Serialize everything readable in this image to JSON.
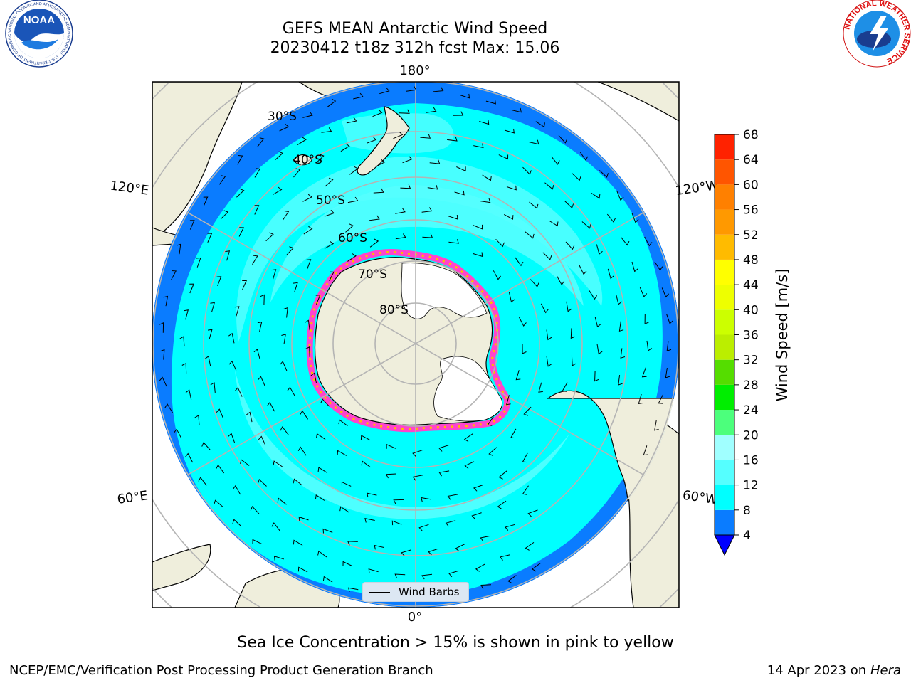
{
  "header": {
    "title_line1": "GEFS MEAN Antarctic Wind Speed",
    "title_line2": "20230412 t18z 312h fcst   Max: 15.06"
  },
  "map": {
    "projection": "south-polar-stereographic",
    "longitude_labels": {
      "top": "180°",
      "bottom": "0°",
      "upper_left": "120°E",
      "upper_right": "120°W",
      "lower_left": "60°E",
      "lower_right": "60°W"
    },
    "latitude_labels": [
      "30°S",
      "40°S",
      "50°S",
      "60°S",
      "70°S",
      "80°S"
    ],
    "colors": {
      "land": "#efeedc",
      "ocean_4_8": "#0a7cff",
      "ocean_8_12": "#00ffff",
      "ocean_12_16": "#55ffff",
      "ice": "#ff44cc",
      "ice_alt": "#ffbb00",
      "antarctic_ice_shelf": "#ffffff",
      "grid": "#b4b4b4"
    }
  },
  "legend": {
    "wind_barbs_label": "Wind Barbs"
  },
  "colorbar": {
    "label": "Wind Speed [m/s]",
    "ticks": [
      68,
      64,
      60,
      56,
      52,
      48,
      44,
      40,
      36,
      32,
      28,
      24,
      20,
      16,
      12,
      8,
      4
    ],
    "bands": [
      {
        "from": 4,
        "to": 8,
        "color": "#0a7cff"
      },
      {
        "from": 8,
        "to": 12,
        "color": "#00ffff"
      },
      {
        "from": 12,
        "to": 16,
        "color": "#55ffff"
      },
      {
        "from": 16,
        "to": 20,
        "color": "#a0ffff"
      },
      {
        "from": 20,
        "to": 24,
        "color": "#4cff7c"
      },
      {
        "from": 24,
        "to": 28,
        "color": "#00ee00"
      },
      {
        "from": 28,
        "to": 32,
        "color": "#55dd00"
      },
      {
        "from": 32,
        "to": 36,
        "color": "#bbee00"
      },
      {
        "from": 36,
        "to": 40,
        "color": "#ccff00"
      },
      {
        "from": 40,
        "to": 44,
        "color": "#eeff00"
      },
      {
        "from": 44,
        "to": 48,
        "color": "#ffff00"
      },
      {
        "from": 48,
        "to": 52,
        "color": "#ffbb00"
      },
      {
        "from": 52,
        "to": 56,
        "color": "#ff9900"
      },
      {
        "from": 56,
        "to": 60,
        "color": "#ff8000"
      },
      {
        "from": 60,
        "to": 64,
        "color": "#ff5500"
      },
      {
        "from": 64,
        "to": 68,
        "color": "#ff2200"
      }
    ],
    "top_color": "#ff0000",
    "under_color": "#0000ff"
  },
  "caption": "Sea Ice Concentration > 15% is shown in pink to yellow",
  "footer": {
    "left": "NCEP/EMC/Verification Post Processing Product Generation Branch",
    "right_prefix": "14 Apr 2023 on ",
    "right_host": "Hera"
  },
  "logos": {
    "left": "NOAA",
    "left_ring": "NATIONAL OCEANIC AND ATMOSPHERIC ADMINISTRATION · U.S. DEPARTMENT OF COMMERCE",
    "right_ring": "NATIONAL WEATHER SERVICE"
  }
}
